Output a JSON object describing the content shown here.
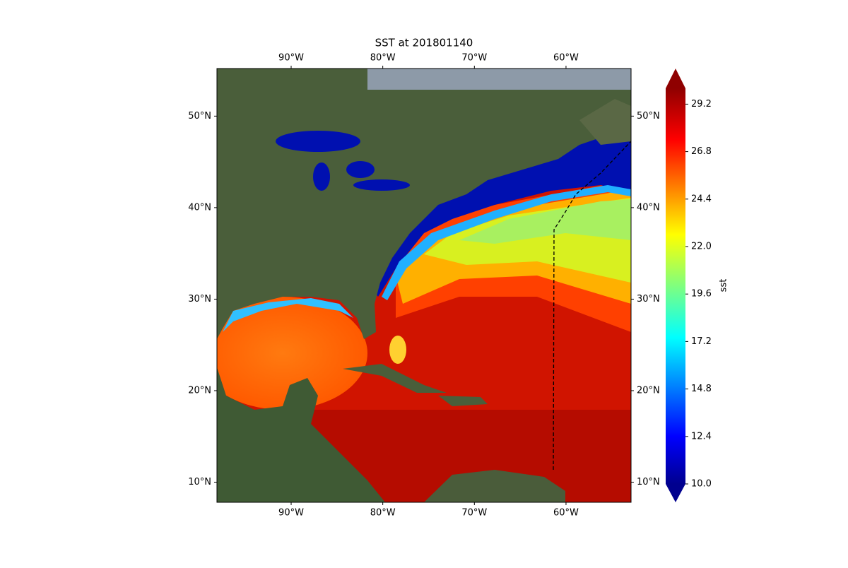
{
  "chart_data": {
    "type": "map",
    "title": "SST at 201801140",
    "xlim": [
      -98.1,
      -52.9
    ],
    "ylim": [
      7.8,
      55.2
    ],
    "xticks": [
      {
        "value": -90,
        "label": "90°W"
      },
      {
        "value": -80,
        "label": "80°W"
      },
      {
        "value": -70,
        "label": "70°W"
      },
      {
        "value": -60,
        "label": "60°W"
      }
    ],
    "yticks": [
      {
        "value": 10,
        "label": "10°N"
      },
      {
        "value": 20,
        "label": "20°N"
      },
      {
        "value": 30,
        "label": "30°N"
      },
      {
        "value": 40,
        "label": "40°N"
      },
      {
        "value": 50,
        "label": "50°N"
      }
    ],
    "colorbar": {
      "label": "sst",
      "clim": [
        10,
        30
      ],
      "ticks": [
        {
          "value": 10,
          "label": "10.0"
        },
        {
          "value": 12.4,
          "label": "12.4"
        },
        {
          "value": 14.8,
          "label": "14.8"
        },
        {
          "value": 17.2,
          "label": "17.2"
        },
        {
          "value": 19.6,
          "label": "19.6"
        },
        {
          "value": 22,
          "label": "22.0"
        },
        {
          "value": 24.4,
          "label": "24.4"
        },
        {
          "value": 26.8,
          "label": "26.8"
        },
        {
          "value": 29.2,
          "label": "29.2"
        }
      ]
    }
  }
}
